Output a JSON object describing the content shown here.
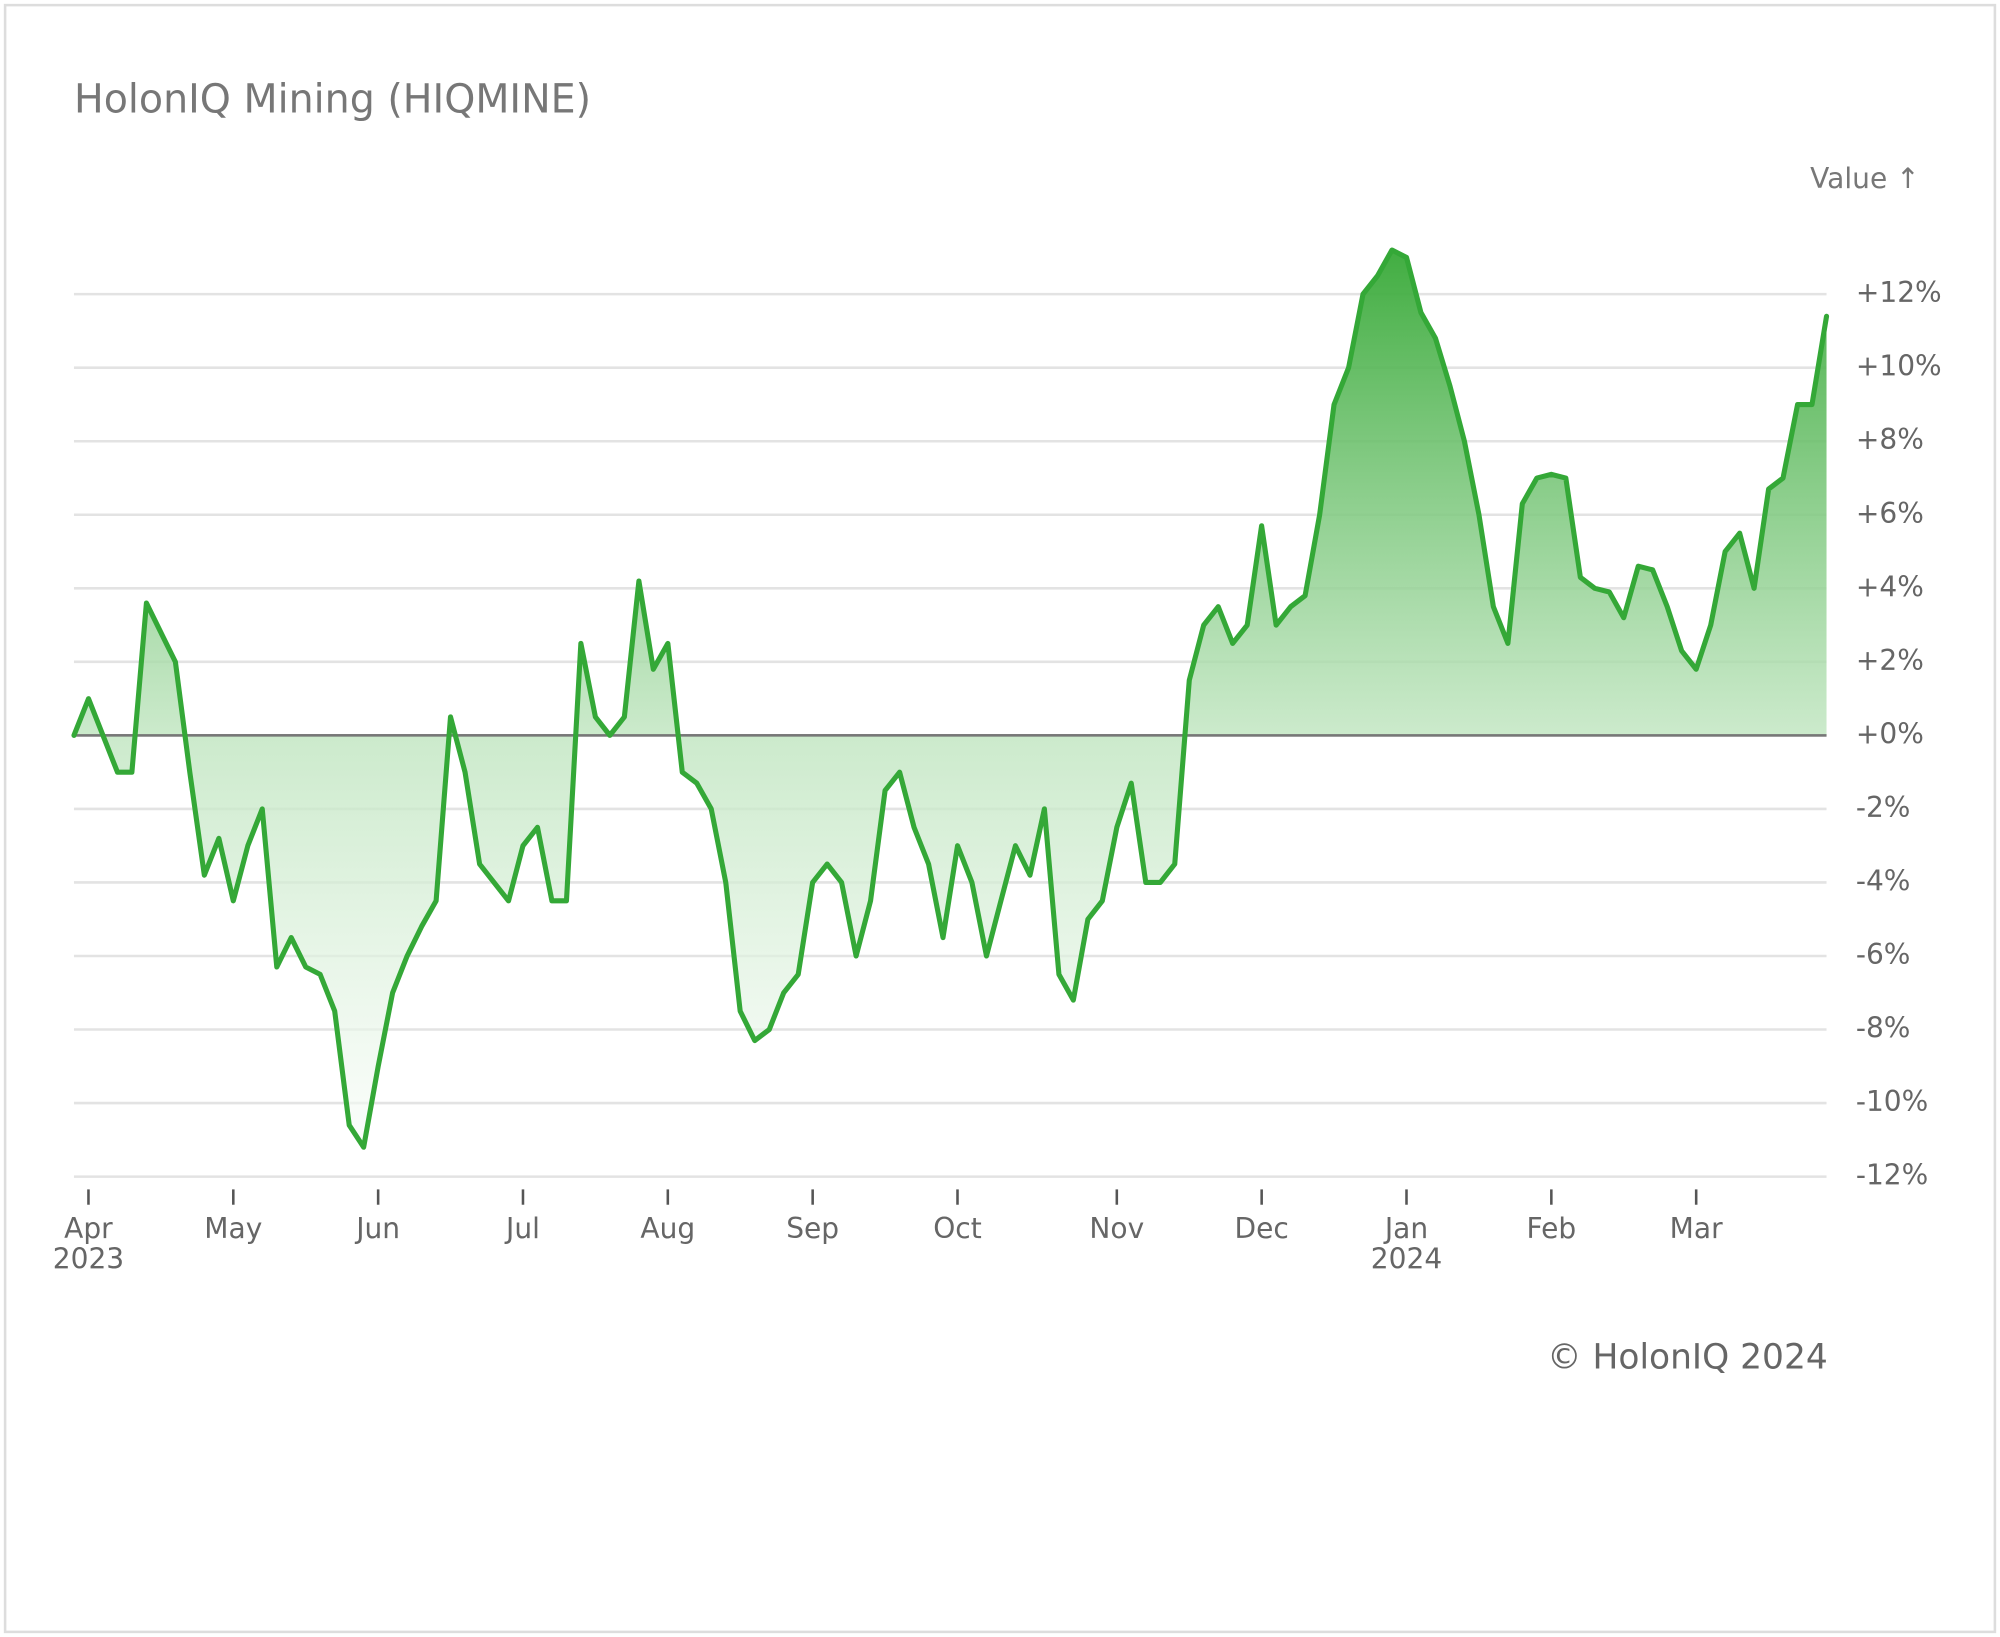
{
  "chart_data": {
    "type": "area",
    "title": "HolonIQ Mining (HIQMINE)",
    "y_axis_label": "Value ↑",
    "source": "© HolonIQ 2024",
    "color": "#34a837",
    "grid": true,
    "categories": [
      null,
      "Apr 2023",
      null,
      null,
      null,
      null,
      null,
      null,
      null,
      null,
      null,
      "May",
      null,
      null,
      null,
      null,
      null,
      null,
      null,
      null,
      null,
      "Jun",
      null,
      null,
      null,
      null,
      null,
      null,
      null,
      null,
      null,
      "Jul",
      null,
      null,
      null,
      null,
      null,
      null,
      null,
      null,
      null,
      "Aug",
      null,
      null,
      null,
      null,
      null,
      null,
      null,
      null,
      null,
      "Sep",
      null,
      null,
      null,
      null,
      null,
      null,
      null,
      null,
      null,
      "Oct",
      null,
      null,
      null,
      null,
      null,
      null,
      null,
      null,
      null,
      null,
      "Nov",
      null,
      null,
      null,
      null,
      null,
      null,
      null,
      null,
      null,
      "Dec",
      null,
      null,
      null,
      null,
      null,
      null,
      null,
      null,
      null,
      "Jan 2024",
      null,
      null,
      null,
      null,
      null,
      null,
      null,
      null,
      null,
      "Feb",
      null,
      null,
      null,
      null,
      null,
      null,
      null,
      null,
      null,
      "Mar",
      null,
      null,
      null,
      null,
      null,
      null,
      null,
      null,
      null
    ],
    "values": [
      0,
      1.0,
      0,
      -1.0,
      -1.0,
      3.6,
      2.8,
      2.0,
      -1.0,
      -3.8,
      -2.8,
      -4.5,
      -3.0,
      -2.0,
      -6.3,
      -5.5,
      -6.3,
      -6.5,
      -7.5,
      -10.6,
      -11.2,
      -9.0,
      -7.0,
      -6.0,
      -5.2,
      -4.5,
      0.5,
      -1.0,
      -3.5,
      -4.0,
      -4.5,
      -3.0,
      -2.5,
      -4.5,
      -4.5,
      2.5,
      0.5,
      0.0,
      0.5,
      4.2,
      1.8,
      2.5,
      -1.0,
      -1.3,
      -2.0,
      -4.0,
      -7.5,
      -8.3,
      -8.0,
      -7.0,
      -6.5,
      -4.0,
      -3.5,
      -4.0,
      -6.0,
      -4.5,
      -1.5,
      -1.0,
      -2.5,
      -3.5,
      -5.5,
      -3.0,
      -4.0,
      -6.0,
      -4.5,
      -3.0,
      -3.8,
      -2.0,
      -6.5,
      -7.2,
      -5.0,
      -4.5,
      -2.5,
      -1.3,
      -4.0,
      -4.0,
      -3.5,
      1.5,
      3.0,
      3.5,
      2.5,
      3.0,
      5.7,
      3.0,
      3.5,
      3.8,
      6.0,
      9.0,
      10.0,
      12.0,
      12.5,
      13.2,
      13.0,
      11.5,
      10.8,
      9.5,
      8.0,
      6.0,
      3.5,
      2.5,
      6.3,
      7.0,
      7.1,
      7.0,
      4.3,
      4.0,
      3.9,
      3.2,
      4.6,
      4.5,
      3.5,
      2.3,
      1.8,
      3.0,
      5.0,
      5.5,
      4.0,
      6.7,
      7.0,
      9.0,
      9.0,
      11.4
    ],
    "ylim": [
      -12.5,
      14
    ],
    "yticks": [
      {
        "value": -12,
        "label": "-12%"
      },
      {
        "value": -10,
        "label": "-10%"
      },
      {
        "value": -8,
        "label": "-8%"
      },
      {
        "value": -6,
        "label": "-6%"
      },
      {
        "value": -4,
        "label": "-4%"
      },
      {
        "value": -2,
        "label": "-2%"
      },
      {
        "value": 0,
        "label": "+0%"
      },
      {
        "value": 2,
        "label": "+2%"
      },
      {
        "value": 4,
        "label": "+4%"
      },
      {
        "value": 6,
        "label": "+6%"
      },
      {
        "value": 8,
        "label": "+8%"
      },
      {
        "value": 10,
        "label": "+10%"
      },
      {
        "value": 12,
        "label": "+12%"
      }
    ]
  }
}
